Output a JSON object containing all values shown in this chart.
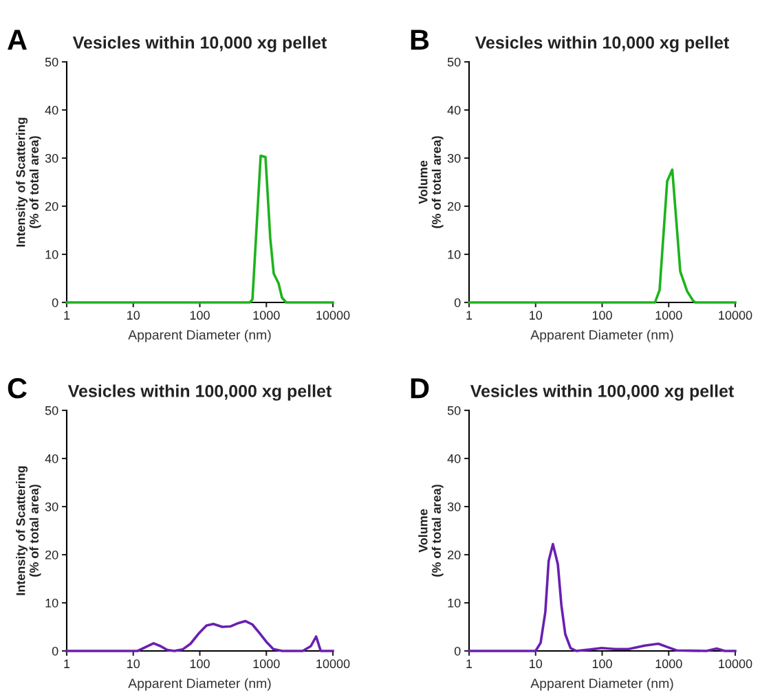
{
  "chart_data": [
    {
      "type": "line",
      "title": "Vesicles within 10,000 xg pellet",
      "xlabel": "Apparent Diameter (nm)",
      "ylabel": "Intensity of Scattering\n(% of total area)",
      "annotations": [
        "A"
      ],
      "log": "x",
      "xlim": [
        1,
        10000
      ],
      "xticks": [
        1,
        10,
        100,
        1000,
        10000
      ],
      "ylim": [
        0,
        50
      ],
      "yticks": [
        0,
        10,
        20,
        30,
        40,
        50
      ],
      "grid": false,
      "series": [
        {
          "color": "#1db31d",
          "x": [
            1,
            561,
            618,
            822,
            971,
            1146,
            1291,
            1524,
            1718,
            1983,
            10000
          ],
          "values": [
            0,
            0,
            0.6,
            30.5,
            30.2,
            13.3,
            6.0,
            4.0,
            1.0,
            0,
            0
          ]
        }
      ]
    },
    {
      "type": "line",
      "title": "Vesicles within 10,000 xg pellet",
      "xlabel": "Apparent Diameter (nm)",
      "ylabel": "Volume\n(% of total area)",
      "annotations": [
        "B"
      ],
      "log": "x",
      "xlim": [
        1,
        10000
      ],
      "xticks": [
        1,
        10,
        100,
        1000,
        10000
      ],
      "ylim": [
        0,
        50
      ],
      "yticks": [
        0,
        10,
        20,
        30,
        40,
        50
      ],
      "grid": false,
      "series": [
        {
          "color": "#1db31d",
          "x": [
            1,
            623,
            730,
            949,
            1132,
            1494,
            1897,
            2316,
            2505,
            10000
          ],
          "values": [
            0,
            0,
            2.6,
            25.2,
            27.6,
            6.4,
            2.3,
            0.4,
            0,
            0
          ]
        }
      ]
    },
    {
      "type": "line",
      "title": "Vesicles within 100,000 xg pellet",
      "xlabel": "Apparent Diameter (nm)",
      "ylabel": "Intensity of Scattering\n(% of total area)",
      "annotations": [
        "C"
      ],
      "log": "x",
      "xlim": [
        1,
        10000
      ],
      "xticks": [
        1,
        10,
        100,
        1000,
        10000
      ],
      "ylim": [
        0,
        50
      ],
      "yticks": [
        0,
        10,
        20,
        30,
        40,
        50
      ],
      "grid": false,
      "series": [
        {
          "color": "#6a1fb0",
          "x": [
            1,
            11.6,
            14.8,
            20.2,
            25.7,
            32.5,
            41.5,
            55,
            72.6,
            96,
            126,
            160,
            218,
            288,
            381,
            486,
            617,
            780,
            1000,
            1270,
            1730,
            3530,
            4660,
            5600,
            6570,
            10000
          ],
          "values": [
            0,
            0,
            0.7,
            1.6,
            1.0,
            0.2,
            0,
            0.3,
            1.5,
            3.6,
            5.3,
            5.6,
            5.0,
            5.1,
            5.8,
            6.2,
            5.5,
            3.8,
            1.9,
            0.4,
            0,
            0,
            1.0,
            3.0,
            0,
            0
          ]
        }
      ]
    },
    {
      "type": "line",
      "title": "Vesicles within 100,000 xg pellet",
      "xlabel": "Apparent Diameter (nm)",
      "ylabel": "Volume\n(% of total area)",
      "annotations": [
        "D"
      ],
      "log": "x",
      "xlim": [
        1,
        10000
      ],
      "xticks": [
        1,
        10,
        100,
        1000,
        10000
      ],
      "ylim": [
        0,
        50
      ],
      "yticks": [
        0,
        10,
        20,
        30,
        40,
        50
      ],
      "grid": false,
      "series": [
        {
          "color": "#6a1fb0",
          "x": [
            1,
            10,
            11.9,
            14,
            15.7,
            18.2,
            21.6,
            24.4,
            27.9,
            33.5,
            40.8,
            66,
            98,
            156,
            250,
            435,
            697,
            960,
            1320,
            3700,
            5270,
            6930,
            10000
          ],
          "values": [
            0,
            0,
            1.7,
            8.1,
            18.7,
            22.2,
            18.0,
            9.5,
            3.5,
            0.6,
            0,
            0.3,
            0.6,
            0.4,
            0.4,
            1.1,
            1.5,
            0.8,
            0.1,
            0,
            0.5,
            0,
            0
          ]
        }
      ]
    }
  ]
}
